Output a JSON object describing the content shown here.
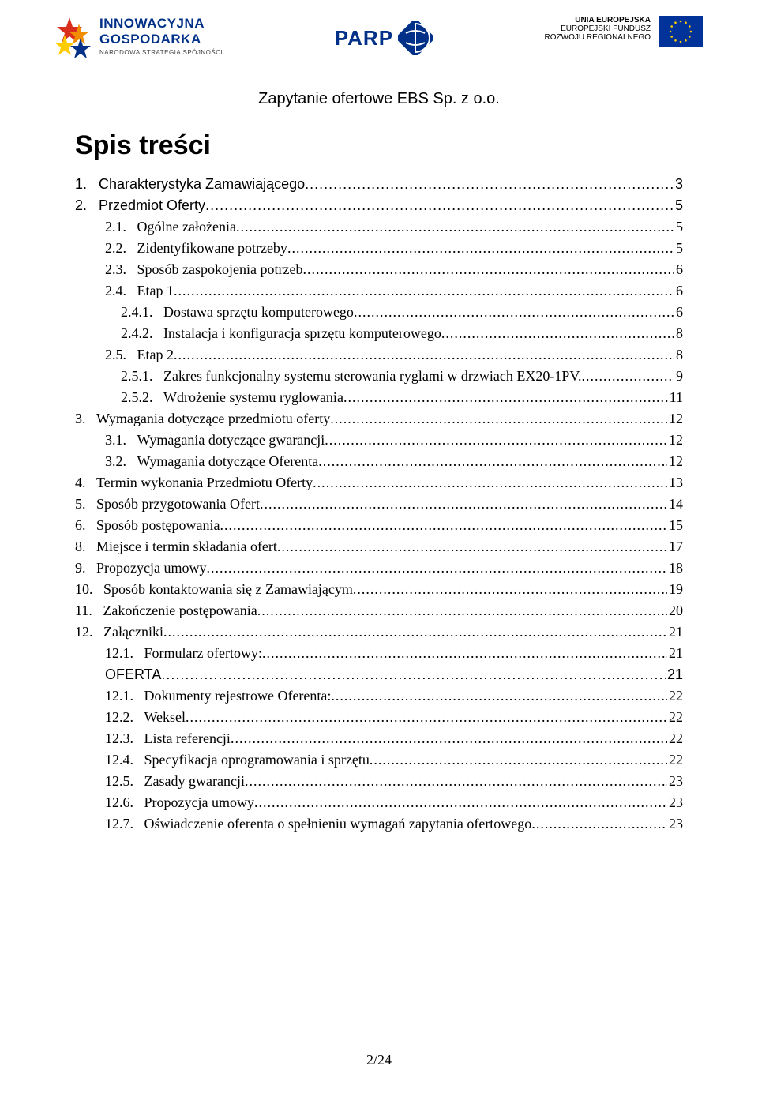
{
  "header": {
    "left_logo": {
      "line1": "INNOWACYJNA",
      "line2": "GOSPODARKA",
      "line3": "NARODOWA STRATEGIA SPÓJNOŚCI"
    },
    "center_logo": {
      "text": "PARP"
    },
    "right_logo": {
      "r1": "UNIA EUROPEJSKA",
      "r2": "EUROPEJSKI FUNDUSZ",
      "r3": "ROZWOJU REGIONALNEGO"
    }
  },
  "doc_title": "Zapytanie ofertowe EBS Sp. z o.o.",
  "section_title": "Spis treści",
  "toc": [
    {
      "indent": 0,
      "font": "sans",
      "num": "1.",
      "text": "Charakterystyka Zamawiającego",
      "page": "3"
    },
    {
      "indent": 0,
      "font": "sans",
      "num": "2.",
      "text": "Przedmiot Oferty",
      "page": "5"
    },
    {
      "indent": 1,
      "font": "serif",
      "num": "2.1.",
      "text": "Ogólne założenia",
      "page": "5"
    },
    {
      "indent": 1,
      "font": "serif",
      "num": "2.2.",
      "text": "Zidentyfikowane potrzeby",
      "page": "5"
    },
    {
      "indent": 1,
      "font": "serif",
      "num": "2.3.",
      "text": "Sposób zaspokojenia potrzeb",
      "page": "6"
    },
    {
      "indent": 1,
      "font": "serif",
      "num": "2.4.",
      "text": "Etap 1",
      "page": "6"
    },
    {
      "indent": 2,
      "font": "serif",
      "num": "2.4.1.",
      "text": "Dostawa sprzętu komputerowego",
      "page": "6"
    },
    {
      "indent": 2,
      "font": "serif",
      "num": "2.4.2.",
      "text": "Instalacja i konfiguracja sprzętu komputerowego",
      "page": "8"
    },
    {
      "indent": 1,
      "font": "serif",
      "num": "2.5.",
      "text": "Etap 2",
      "page": "8"
    },
    {
      "indent": 2,
      "font": "serif",
      "num": "2.5.1.",
      "text": "Zakres funkcjonalny systemu sterowania ryglami w drzwiach EX20-1PV.",
      "page": "9"
    },
    {
      "indent": 2,
      "font": "serif",
      "num": "2.5.2.",
      "text": "Wdrożenie systemu ryglowania",
      "page": "11"
    },
    {
      "indent": 0,
      "font": "serif",
      "num": "3.",
      "text": "Wymagania dotyczące przedmiotu oferty",
      "page": "12"
    },
    {
      "indent": 1,
      "font": "serif",
      "num": "3.1.",
      "text": "Wymagania dotyczące gwarancji",
      "page": "12"
    },
    {
      "indent": 1,
      "font": "serif",
      "num": "3.2.",
      "text": "Wymagania dotyczące Oferenta",
      "page": "12"
    },
    {
      "indent": 0,
      "font": "serif",
      "num": "4.",
      "text": "Termin wykonania Przedmiotu Oferty",
      "page": "13"
    },
    {
      "indent": 0,
      "font": "serif",
      "num": "5.",
      "text": "Sposób przygotowania Ofert",
      "page": "14"
    },
    {
      "indent": 0,
      "font": "serif",
      "num": "6.",
      "text": "Sposób postępowania",
      "page": "15"
    },
    {
      "indent": 0,
      "font": "serif",
      "num": "8.",
      "text": "Miejsce i termin składania ofert",
      "page": "17"
    },
    {
      "indent": 0,
      "font": "serif",
      "num": "9.",
      "text": "Propozycja umowy",
      "page": "18"
    },
    {
      "indent": 0,
      "font": "serif",
      "num": "10.",
      "text": "Sposób kontaktowania się z Zamawiającym",
      "page": "19"
    },
    {
      "indent": 0,
      "font": "serif",
      "num": "11.",
      "text": "Zakończenie postępowania",
      "page": "20"
    },
    {
      "indent": 0,
      "font": "serif",
      "num": "12.",
      "text": "Załączniki",
      "page": "21"
    },
    {
      "indent": 1,
      "font": "serif",
      "num": "12.1.",
      "text": "Formularz ofertowy:",
      "page": "21"
    },
    {
      "indent": 1,
      "font": "sans",
      "num": "",
      "text": "OFERTA",
      "page": "21"
    },
    {
      "indent": 1,
      "font": "serif",
      "num": "12.1.",
      "text": "Dokumenty rejestrowe Oferenta:",
      "page": "22"
    },
    {
      "indent": 1,
      "font": "serif",
      "num": "12.2.",
      "text": "Weksel",
      "page": "22"
    },
    {
      "indent": 1,
      "font": "serif",
      "num": "12.3.",
      "text": "Lista referencji",
      "page": "22"
    },
    {
      "indent": 1,
      "font": "serif",
      "num": "12.4.",
      "text": "Specyfikacja oprogramowania i sprzętu",
      "page": "22"
    },
    {
      "indent": 1,
      "font": "serif",
      "num": "12.5.",
      "text": "Zasady gwarancji",
      "page": "23"
    },
    {
      "indent": 1,
      "font": "serif",
      "num": "12.6.",
      "text": "Propozycja umowy",
      "page": "23"
    },
    {
      "indent": 1,
      "font": "serif",
      "num": "12.7.",
      "text": "Oświadczenie oferenta o spełnieniu wymagań zapytania ofertowego",
      "page": "23"
    }
  ],
  "footer": "2/24",
  "colors": {
    "brand_blue": "#003087",
    "eu_blue": "#003399",
    "eu_gold": "#ffcc00",
    "orange": "#f28c00",
    "red": "#d92e1c",
    "text": "#000000",
    "bg": "#ffffff"
  }
}
